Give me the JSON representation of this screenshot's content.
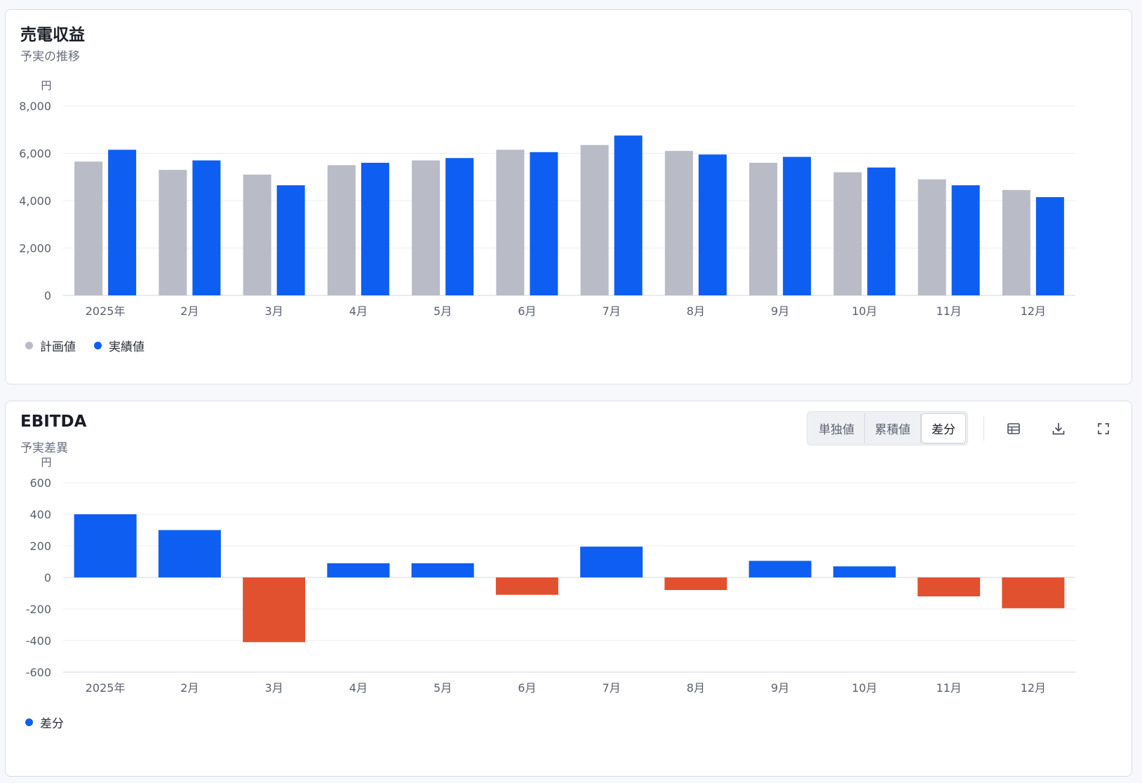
{
  "charts": {
    "revenue": {
      "title": "売電収益",
      "subtitle": "予実の推移",
      "unit": "円",
      "legend": [
        {
          "label": "計画値",
          "color": "#b9bbc6"
        },
        {
          "label": "実績値",
          "color": "#0f5ef2"
        }
      ]
    },
    "ebitda": {
      "title": "EBITDA",
      "subtitle": "予実差異",
      "unit": "円",
      "legend": [
        {
          "label": "差分",
          "color": "#0f5ef2"
        }
      ],
      "toolbar": {
        "segments": [
          "単独値",
          "累積値",
          "差分"
        ],
        "active_segment": "差分",
        "icons": [
          "table-icon",
          "download-icon",
          "fullscreen-icon"
        ]
      }
    }
  },
  "colors": {
    "plan": "#b9bbc6",
    "actual": "#0f5ef2",
    "positive": "#0f5ef2",
    "negative": "#e2512f",
    "grid": "#eceef2",
    "axis_text": "#5a5f6c"
  },
  "chart_data": [
    {
      "type": "bar",
      "title": "売電収益",
      "subtitle": "予実の推移",
      "ylabel": "円",
      "categories": [
        "2025年",
        "2月",
        "3月",
        "4月",
        "5月",
        "6月",
        "7月",
        "8月",
        "9月",
        "10月",
        "11月",
        "12月"
      ],
      "series": [
        {
          "name": "計画値",
          "values": [
            5650,
            5300,
            5100,
            5500,
            5700,
            6150,
            6350,
            6100,
            5600,
            5200,
            4900,
            4450
          ]
        },
        {
          "name": "実績値",
          "values": [
            6150,
            5700,
            4650,
            5600,
            5800,
            6050,
            6750,
            5950,
            5850,
            5400,
            4650,
            4150
          ]
        }
      ],
      "ylim": [
        0,
        8000
      ],
      "yticks": [
        "8,000",
        "6,000",
        "4,000",
        "2,000",
        "0"
      ],
      "ytick_values": [
        8000,
        6000,
        4000,
        2000,
        0
      ],
      "grid": true,
      "legend_position": "bottom-left"
    },
    {
      "type": "bar",
      "title": "EBITDA",
      "subtitle": "予実差異",
      "ylabel": "円",
      "categories": [
        "2025年",
        "2月",
        "3月",
        "4月",
        "5月",
        "6月",
        "7月",
        "8月",
        "9月",
        "10月",
        "11月",
        "12月"
      ],
      "series": [
        {
          "name": "差分",
          "values": [
            400,
            300,
            -410,
            90,
            90,
            -110,
            195,
            -80,
            105,
            70,
            -120,
            -195
          ]
        }
      ],
      "ylim": [
        -600,
        600
      ],
      "yticks": [
        "600",
        "400",
        "200",
        "0",
        "-200",
        "-400",
        "-600"
      ],
      "ytick_values": [
        600,
        400,
        200,
        0,
        -200,
        -400,
        -600
      ],
      "grid": true,
      "legend_position": "bottom-left"
    }
  ]
}
